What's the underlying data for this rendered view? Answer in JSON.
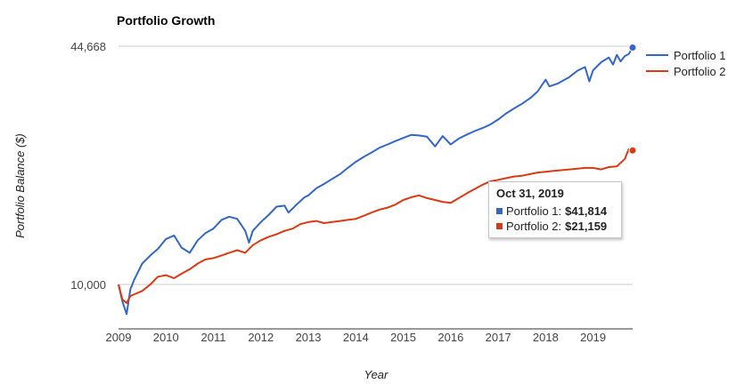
{
  "chart_data": {
    "type": "line",
    "title": "Portfolio Growth",
    "xlabel": "Year",
    "ylabel": "Portfolio Balance ($)",
    "y_scale": "log",
    "y_ticks": [
      "10,000",
      "44,668"
    ],
    "y_tick_values": [
      10000,
      44668
    ],
    "ylim": [
      8000,
      44668
    ],
    "xlim": [
      2009.0,
      2019.833
    ],
    "x_tick_labels": [
      "2009",
      "2010",
      "2011",
      "2012",
      "2013",
      "2014",
      "2015",
      "2016",
      "2017",
      "2018",
      "2019"
    ],
    "grid": true,
    "legend_position": "right",
    "series": [
      {
        "name": "Portfolio 1",
        "color": "#3366cc",
        "points": [
          [
            2009.0,
            10000
          ],
          [
            2009.08,
            9000
          ],
          [
            2009.17,
            8300
          ],
          [
            2009.25,
            9700
          ],
          [
            2009.33,
            10300
          ],
          [
            2009.5,
            11400
          ],
          [
            2009.67,
            12000
          ],
          [
            2009.83,
            12500
          ],
          [
            2010.0,
            13300
          ],
          [
            2010.17,
            13600
          ],
          [
            2010.33,
            12600
          ],
          [
            2010.5,
            12200
          ],
          [
            2010.67,
            13200
          ],
          [
            2010.83,
            13800
          ],
          [
            2011.0,
            14200
          ],
          [
            2011.17,
            15000
          ],
          [
            2011.33,
            15300
          ],
          [
            2011.5,
            15100
          ],
          [
            2011.67,
            14000
          ],
          [
            2011.75,
            13000
          ],
          [
            2011.83,
            14000
          ],
          [
            2012.0,
            14800
          ],
          [
            2012.17,
            15500
          ],
          [
            2012.33,
            16300
          ],
          [
            2012.5,
            16400
          ],
          [
            2012.58,
            15700
          ],
          [
            2012.75,
            16500
          ],
          [
            2012.92,
            17300
          ],
          [
            2013.0,
            17500
          ],
          [
            2013.17,
            18300
          ],
          [
            2013.33,
            18800
          ],
          [
            2013.5,
            19400
          ],
          [
            2013.67,
            20000
          ],
          [
            2013.83,
            20800
          ],
          [
            2014.0,
            21600
          ],
          [
            2014.17,
            22300
          ],
          [
            2014.33,
            22900
          ],
          [
            2014.5,
            23600
          ],
          [
            2014.67,
            24100
          ],
          [
            2014.83,
            24600
          ],
          [
            2015.0,
            25100
          ],
          [
            2015.17,
            25600
          ],
          [
            2015.33,
            25500
          ],
          [
            2015.5,
            25300
          ],
          [
            2015.67,
            23800
          ],
          [
            2015.83,
            25400
          ],
          [
            2016.0,
            24100
          ],
          [
            2016.17,
            25000
          ],
          [
            2016.33,
            25600
          ],
          [
            2016.5,
            26200
          ],
          [
            2016.67,
            26700
          ],
          [
            2016.83,
            27300
          ],
          [
            2017.0,
            28200
          ],
          [
            2017.17,
            29300
          ],
          [
            2017.33,
            30200
          ],
          [
            2017.5,
            31100
          ],
          [
            2017.67,
            32200
          ],
          [
            2017.83,
            33600
          ],
          [
            2018.0,
            36200
          ],
          [
            2018.08,
            34700
          ],
          [
            2018.25,
            35300
          ],
          [
            2018.5,
            36800
          ],
          [
            2018.67,
            38300
          ],
          [
            2018.83,
            39200
          ],
          [
            2018.92,
            35800
          ],
          [
            2019.0,
            38400
          ],
          [
            2019.17,
            40400
          ],
          [
            2019.33,
            41600
          ],
          [
            2019.42,
            39800
          ],
          [
            2019.5,
            42300
          ],
          [
            2019.58,
            40600
          ],
          [
            2019.67,
            42000
          ],
          [
            2019.75,
            42500
          ],
          [
            2019.833,
            44300
          ]
        ]
      },
      {
        "name": "Portfolio 2",
        "color": "#dc3912",
        "points": [
          [
            2009.0,
            10000
          ],
          [
            2009.08,
            9100
          ],
          [
            2009.17,
            8900
          ],
          [
            2009.25,
            9300
          ],
          [
            2009.5,
            9600
          ],
          [
            2009.67,
            10000
          ],
          [
            2009.83,
            10500
          ],
          [
            2010.0,
            10600
          ],
          [
            2010.17,
            10400
          ],
          [
            2010.33,
            10700
          ],
          [
            2010.5,
            11000
          ],
          [
            2010.67,
            11400
          ],
          [
            2010.83,
            11700
          ],
          [
            2011.0,
            11800
          ],
          [
            2011.17,
            12000
          ],
          [
            2011.33,
            12200
          ],
          [
            2011.5,
            12400
          ],
          [
            2011.67,
            12200
          ],
          [
            2011.83,
            12800
          ],
          [
            2012.0,
            13200
          ],
          [
            2012.17,
            13500
          ],
          [
            2012.33,
            13700
          ],
          [
            2012.5,
            14000
          ],
          [
            2012.67,
            14200
          ],
          [
            2012.83,
            14600
          ],
          [
            2013.0,
            14800
          ],
          [
            2013.17,
            14900
          ],
          [
            2013.33,
            14700
          ],
          [
            2013.5,
            14800
          ],
          [
            2013.67,
            14900
          ],
          [
            2013.83,
            15000
          ],
          [
            2014.0,
            15100
          ],
          [
            2014.17,
            15400
          ],
          [
            2014.33,
            15700
          ],
          [
            2014.5,
            16000
          ],
          [
            2014.67,
            16200
          ],
          [
            2014.83,
            16500
          ],
          [
            2015.0,
            17000
          ],
          [
            2015.17,
            17300
          ],
          [
            2015.33,
            17500
          ],
          [
            2015.5,
            17200
          ],
          [
            2015.67,
            17000
          ],
          [
            2015.83,
            16800
          ],
          [
            2016.0,
            16700
          ],
          [
            2016.17,
            17200
          ],
          [
            2016.33,
            17700
          ],
          [
            2016.5,
            18200
          ],
          [
            2016.67,
            18700
          ],
          [
            2016.83,
            19100
          ],
          [
            2017.0,
            19300
          ],
          [
            2017.17,
            19500
          ],
          [
            2017.33,
            19700
          ],
          [
            2017.5,
            19800
          ],
          [
            2017.67,
            20000
          ],
          [
            2017.83,
            20200
          ],
          [
            2018.0,
            20300
          ],
          [
            2018.17,
            20400
          ],
          [
            2018.33,
            20500
          ],
          [
            2018.5,
            20600
          ],
          [
            2018.67,
            20700
          ],
          [
            2018.83,
            20800
          ],
          [
            2019.0,
            20800
          ],
          [
            2019.17,
            20600
          ],
          [
            2019.33,
            20900
          ],
          [
            2019.5,
            21000
          ],
          [
            2019.67,
            22000
          ],
          [
            2019.75,
            23400
          ],
          [
            2019.833,
            23200
          ]
        ]
      }
    ],
    "tooltip": {
      "date": "Oct 31, 2019",
      "rows": [
        {
          "label": "Portfolio 1:",
          "value": "$41,814",
          "color": "#3366cc"
        },
        {
          "label": "Portfolio 2:",
          "value": "$21,159",
          "color": "#dc3912"
        }
      ]
    }
  }
}
